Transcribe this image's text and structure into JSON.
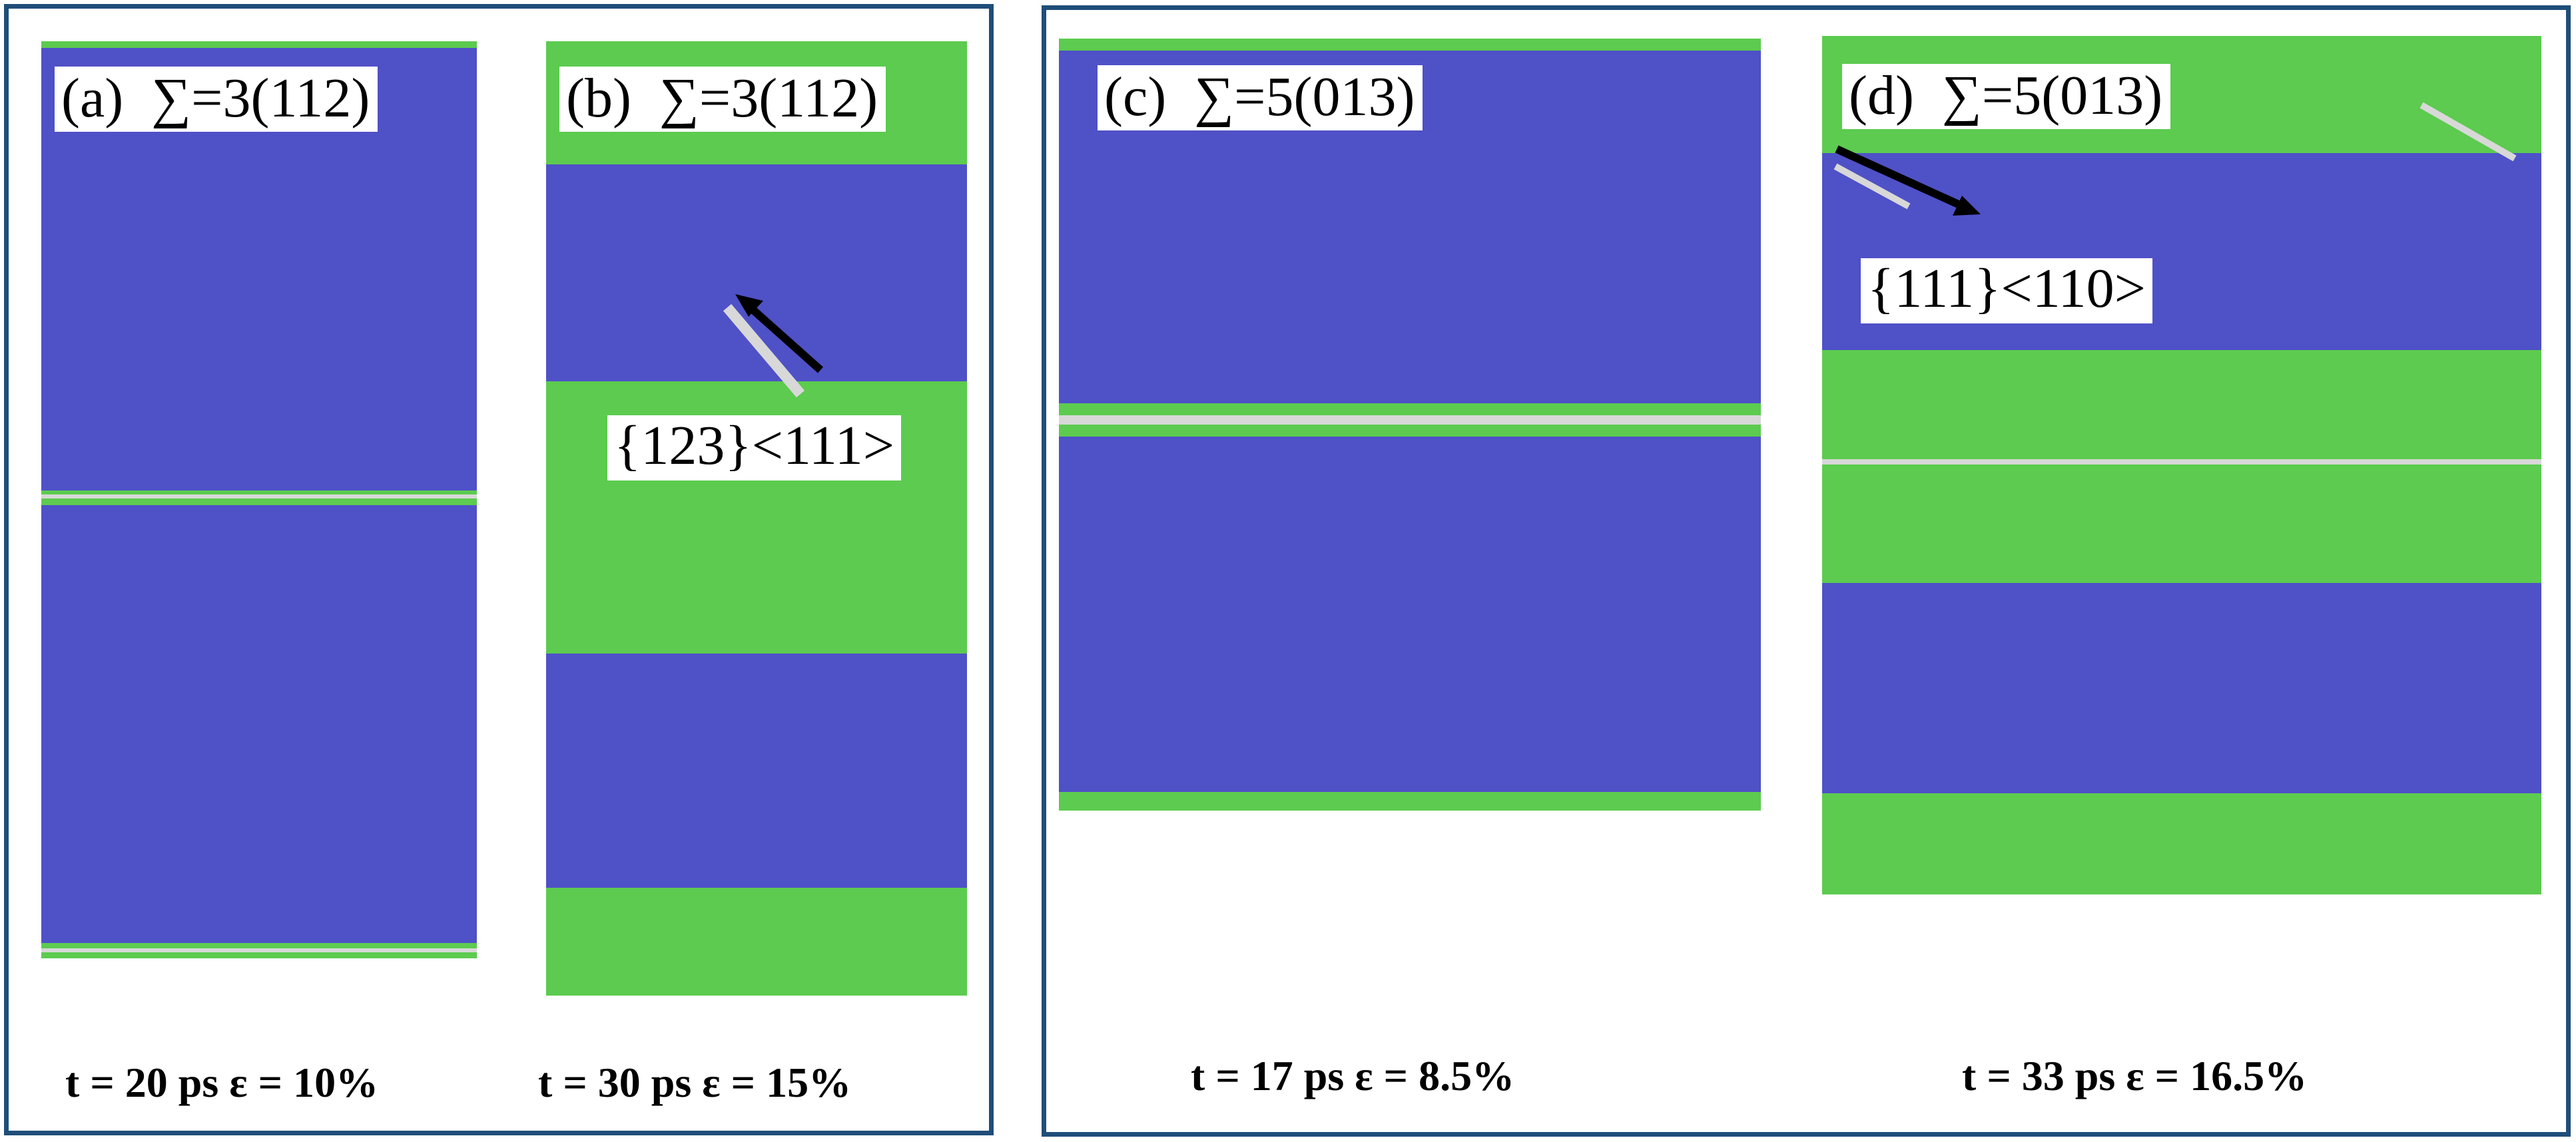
{
  "colors": {
    "bcc_atoms": "#4f51c7",
    "fcc_atoms": "#5ccb4f",
    "other_atoms": "#d8d8d8",
    "frame_border": "#1f4e79",
    "arrow": "#000000"
  },
  "panels": [
    {
      "id": "(a)",
      "boundary": "∑=3(112)",
      "caption": "t = 20 ps ε = 10%",
      "slip_system": ""
    },
    {
      "id": "(b)",
      "boundary": "∑=3(112)",
      "caption": "t = 30 ps ε = 15%",
      "slip_system": "{123}<111>"
    },
    {
      "id": "(c)",
      "boundary": "∑=5(013)",
      "caption": "t = 17 ps ε = 8.5%",
      "slip_system": ""
    },
    {
      "id": "(d)",
      "boundary": "∑=5(013)",
      "caption": "t = 33 ps ε = 16.5%",
      "slip_system": "{111}<110>"
    }
  ]
}
